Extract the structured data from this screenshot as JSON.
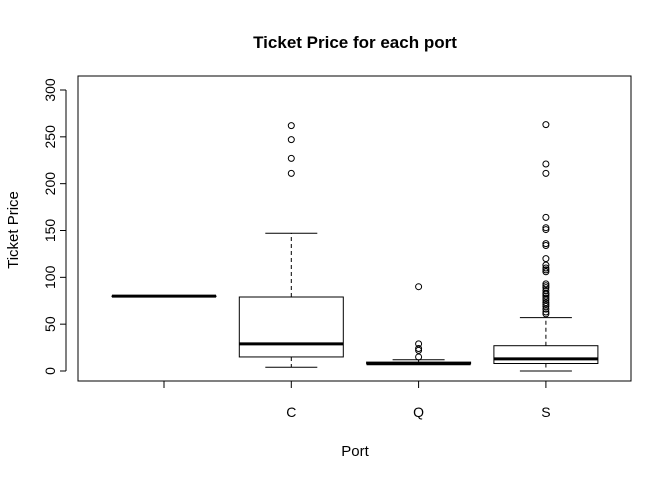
{
  "chart_data": {
    "type": "boxplot",
    "title": "Ticket Price for each port",
    "xlabel": "Port",
    "ylabel": "Ticket Price",
    "ylim": [
      0,
      300
    ],
    "yticks": [
      0,
      50,
      100,
      150,
      200,
      250,
      300
    ],
    "grid": false,
    "legend": "none",
    "categories": [
      "",
      "C",
      "Q",
      "S"
    ],
    "boxes": [
      {
        "label": "",
        "min": 80,
        "q1": 80,
        "median": 80,
        "q3": 80,
        "max": 80,
        "outliers": []
      },
      {
        "label": "C",
        "min": 4,
        "q1": 15,
        "median": 29,
        "q3": 79,
        "max": 147,
        "outliers": [
          211,
          227,
          247,
          262
        ]
      },
      {
        "label": "Q",
        "min": 7,
        "q1": 7.7,
        "median": 7.8,
        "q3": 9.5,
        "max": 12,
        "outliers": [
          15,
          22,
          24,
          29,
          90
        ]
      },
      {
        "label": "S",
        "min": 0,
        "q1": 8,
        "median": 13,
        "q3": 27,
        "max": 57,
        "outliers": [
          61,
          63,
          66,
          69,
          71,
          73,
          76,
          78,
          80,
          82,
          83,
          86,
          89,
          91,
          93,
          106,
          108,
          110,
          113,
          120,
          134,
          136,
          151,
          153,
          164,
          211,
          221,
          263
        ]
      }
    ]
  }
}
